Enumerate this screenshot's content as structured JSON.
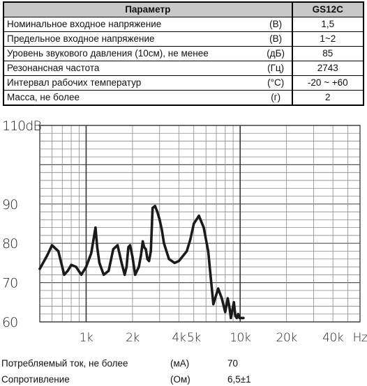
{
  "table": {
    "header": {
      "name": "Параметр",
      "value": "GS12C"
    },
    "rows": [
      {
        "name": "Номинальное входное напряжение",
        "unit": "(В)",
        "value": "1,5"
      },
      {
        "name": "Предельное входное напряжение",
        "unit": "(В)",
        "value": "1~2"
      },
      {
        "name": "Уровень звукового давления (10см), не менее",
        "unit": "(дБ)",
        "value": "85"
      },
      {
        "name": "Резонансная частота",
        "unit": "(Гц)",
        "value": "2743"
      },
      {
        "name": "Интервал рабочих температур",
        "unit": "(°С)",
        "value": "-20 ~ +60"
      },
      {
        "name": "Масса, не более",
        "unit": "(г)",
        "value": "2"
      }
    ]
  },
  "chart_data": {
    "type": "line",
    "title": "",
    "xlabel": "",
    "ylabel": "",
    "x_scale": "log",
    "xlim": [
      500,
      60000
    ],
    "ylim": [
      60,
      110
    ],
    "y_tick_labels": [
      "110dB",
      "90",
      "80",
      "70",
      "60"
    ],
    "y_tick_values": [
      110,
      90,
      80,
      70,
      60
    ],
    "x_tick_labels": [
      "1k",
      "2k",
      "4k",
      "5k",
      "10k",
      "20k",
      "40k",
      "Hz"
    ],
    "x_tick_values": [
      1000,
      2000,
      4000,
      5000,
      10000,
      20000,
      40000,
      60000
    ],
    "grid": true,
    "series": [
      {
        "color": "#1a1a1a",
        "x": [
          500,
          560,
          600,
          660,
          720,
          760,
          800,
          860,
          930,
          1000,
          1080,
          1150,
          1180,
          1220,
          1300,
          1400,
          1500,
          1600,
          1700,
          1780,
          1830,
          1880,
          1930,
          2000,
          2080,
          2200,
          2270,
          2330,
          2380,
          2440,
          2500,
          2560,
          2630,
          2700,
          2800,
          2900,
          3000,
          3100,
          3200,
          3450,
          3750,
          4000,
          4500,
          4750,
          5000,
          5400,
          5800,
          6200,
          6700,
          7200,
          7600,
          8000,
          8300,
          8500,
          8700,
          8900,
          9100,
          9300,
          9500,
          9700,
          9900,
          10100,
          10300,
          10500
        ],
        "y": [
          73.5,
          77,
          79.5,
          78,
          72,
          73,
          74.5,
          74,
          72,
          74,
          77.5,
          84,
          79,
          75,
          72,
          73,
          78.5,
          79.5,
          75,
          72,
          74,
          79,
          79.5,
          76.5,
          72,
          74,
          77,
          80.5,
          79,
          78.5,
          76,
          75.5,
          78,
          89,
          89.5,
          88,
          86,
          83.5,
          80,
          76,
          75,
          75.5,
          78,
          81,
          85,
          87,
          84,
          78,
          64.5,
          68.5,
          66,
          62.5,
          66,
          64,
          61,
          63,
          65,
          61.5,
          61,
          62,
          61,
          61,
          61,
          61
        ]
      }
    ]
  },
  "footer": [
    {
      "name": "Потребляемый ток, не более",
      "unit": "(мА)",
      "value": "70"
    },
    {
      "name": "Сопротивление",
      "unit": "(Ом)",
      "value": "6,5±1"
    }
  ]
}
